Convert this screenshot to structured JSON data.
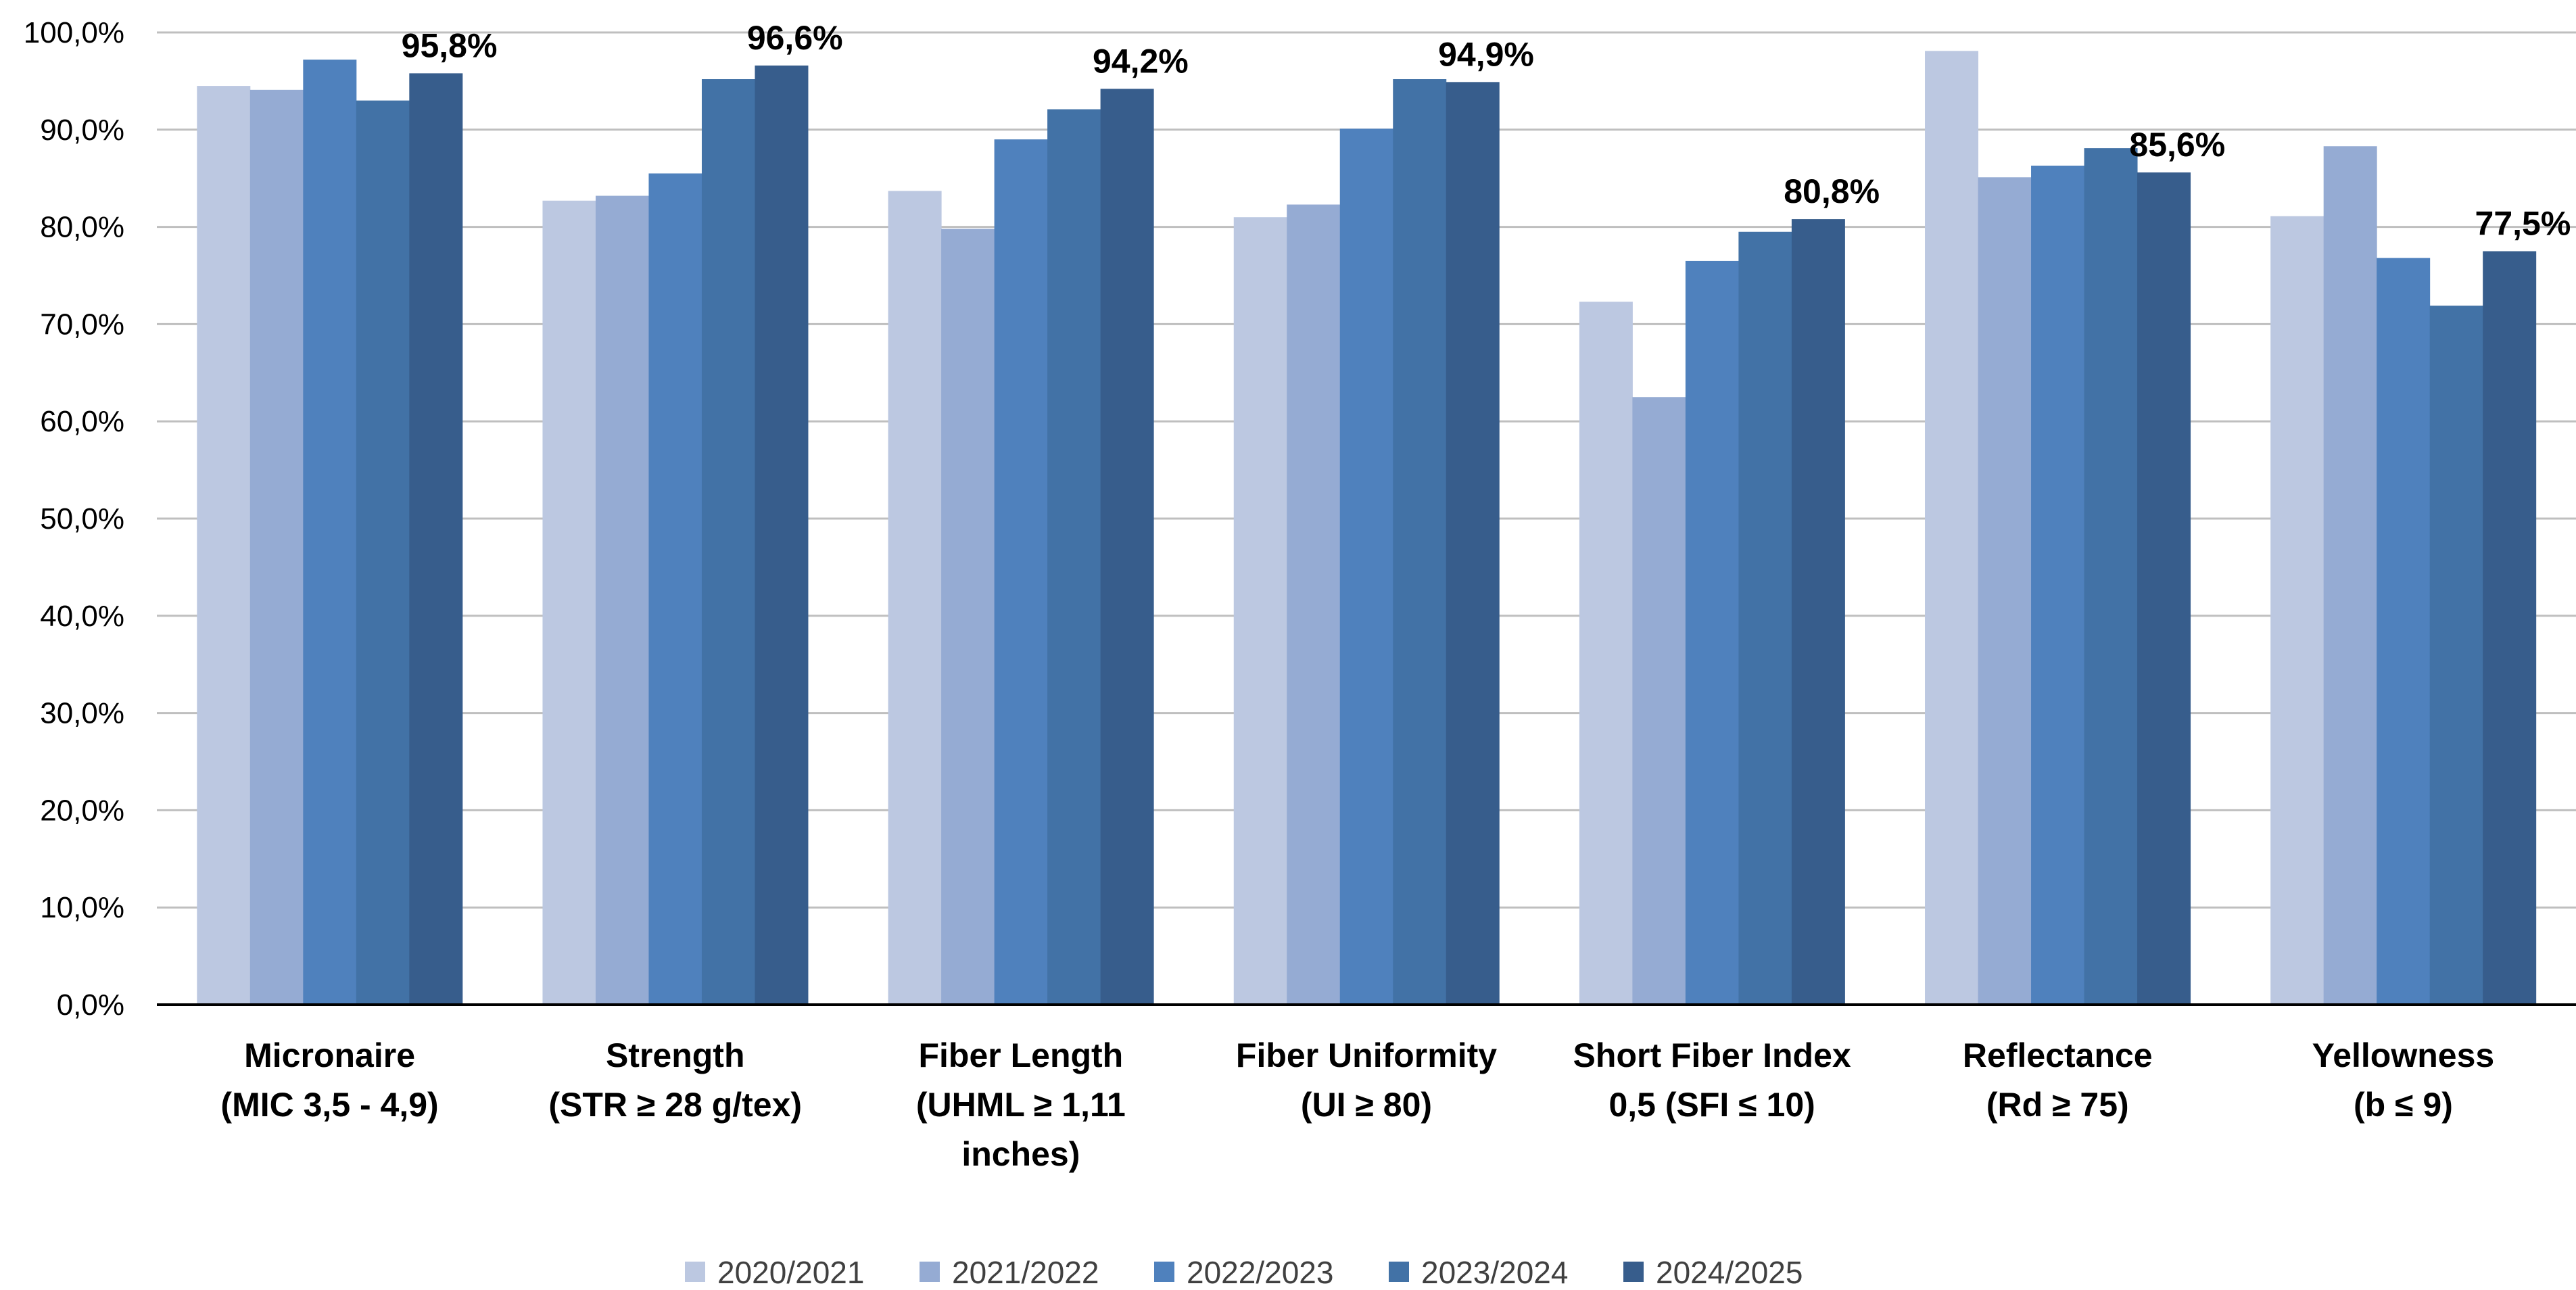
{
  "chart_data": {
    "type": "bar",
    "categories": [
      [
        "Micronaire",
        "(MIC 3,5 - 4,9)"
      ],
      [
        "Strength",
        "(STR ≥ 28 g/tex)"
      ],
      [
        "Fiber Length",
        "(UHML ≥ 1,11",
        "inches)"
      ],
      [
        "Fiber Uniformity",
        "(UI ≥ 80)"
      ],
      [
        "Short Fiber Index",
        "0,5 (SFI ≤ 10)"
      ],
      [
        "Reflectance",
        "(Rd ≥ 75)"
      ],
      [
        "Yellowness",
        "(b ≤ 9)"
      ]
    ],
    "series": [
      {
        "name": "2020/2021",
        "color": "#bcc8e1",
        "values": [
          94.5,
          82.7,
          83.7,
          81.0,
          72.3,
          98.1,
          81.1
        ]
      },
      {
        "name": "2021/2022",
        "color": "#95abd3",
        "values": [
          94.1,
          83.2,
          79.8,
          82.3,
          62.5,
          85.1,
          88.3
        ]
      },
      {
        "name": "2022/2023",
        "color": "#4f81bd",
        "values": [
          97.2,
          85.5,
          89.0,
          90.1,
          76.5,
          86.3,
          76.8
        ]
      },
      {
        "name": "2023/2024",
        "color": "#4272a6",
        "values": [
          93.0,
          95.2,
          92.1,
          95.2,
          79.5,
          88.1,
          71.9
        ]
      },
      {
        "name": "2024/2025",
        "color": "#375d8c",
        "values": [
          95.8,
          96.6,
          94.2,
          94.9,
          80.8,
          85.6,
          77.5
        ]
      }
    ],
    "data_labels": [
      "95,8%",
      "96,6%",
      "94,2%",
      "94,9%",
      "80,8%",
      "85,6%",
      "77,5%"
    ],
    "y_ticks": [
      "0,0%",
      "10,0%",
      "20,0%",
      "30,0%",
      "40,0%",
      "50,0%",
      "60,0%",
      "70,0%",
      "80,0%",
      "90,0%",
      "100,0%"
    ],
    "ylim": [
      0,
      100
    ],
    "grid": true,
    "legend": "bottom"
  }
}
